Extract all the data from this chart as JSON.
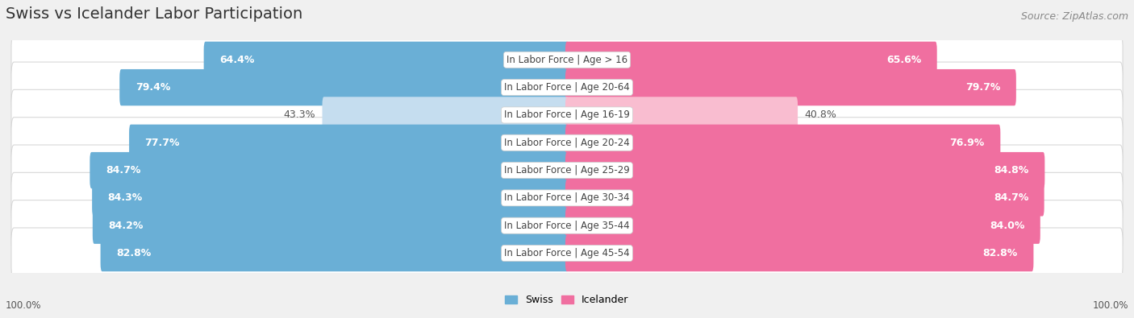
{
  "title": "Swiss vs Icelander Labor Participation",
  "source": "Source: ZipAtlas.com",
  "categories": [
    "In Labor Force | Age > 16",
    "In Labor Force | Age 20-64",
    "In Labor Force | Age 16-19",
    "In Labor Force | Age 20-24",
    "In Labor Force | Age 25-29",
    "In Labor Force | Age 30-34",
    "In Labor Force | Age 35-44",
    "In Labor Force | Age 45-54"
  ],
  "swiss_values": [
    64.4,
    79.4,
    43.3,
    77.7,
    84.7,
    84.3,
    84.2,
    82.8
  ],
  "icelander_values": [
    65.6,
    79.7,
    40.8,
    76.9,
    84.8,
    84.7,
    84.0,
    82.8
  ],
  "swiss_color_strong": "#6aafd6",
  "swiss_color_light": "#c5ddef",
  "icelander_color_strong": "#f06fa0",
  "icelander_color_light": "#f9bdd0",
  "background_color": "#f0f0f0",
  "row_bg_color": "#ffffff",
  "row_border_color": "#d8d8d8",
  "white": "#ffffff",
  "label_white": "#ffffff",
  "label_dark": "#555555",
  "max_value": 100.0,
  "bar_height": 0.72,
  "title_fontsize": 14,
  "source_fontsize": 9,
  "value_fontsize": 9,
  "category_fontsize": 8.5,
  "legend_fontsize": 9,
  "footer_fontsize": 8.5
}
